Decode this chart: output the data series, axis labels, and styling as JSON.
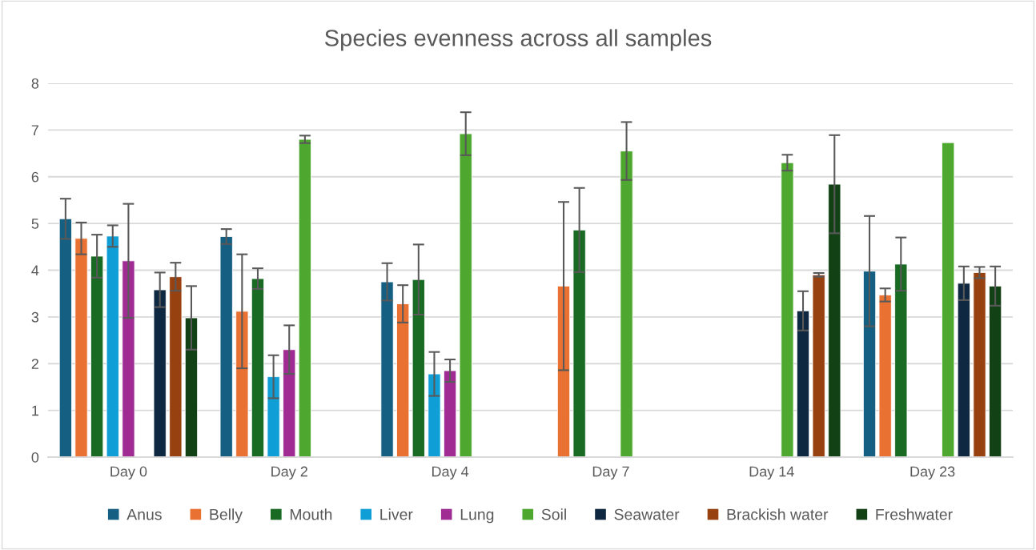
{
  "chart_data": {
    "type": "bar",
    "title": "Species evenness across all samples",
    "categories": [
      "Day 0",
      "Day 2",
      "Day 4",
      "Day 7",
      "Day 14",
      "Day 23"
    ],
    "series": [
      {
        "name": "Anus",
        "color": "#156082",
        "values": [
          5.1,
          4.72,
          3.75,
          null,
          null,
          3.98
        ],
        "errors": [
          0.43,
          0.16,
          0.4,
          null,
          null,
          1.18
        ]
      },
      {
        "name": "Belly",
        "color": "#e97132",
        "values": [
          4.68,
          3.12,
          3.28,
          3.66,
          null,
          3.47
        ],
        "errors": [
          0.34,
          1.22,
          0.4,
          1.8,
          null,
          0.14
        ]
      },
      {
        "name": "Mouth",
        "color": "#196b24",
        "values": [
          4.3,
          3.82,
          3.8,
          4.86,
          null,
          4.13
        ],
        "errors": [
          0.46,
          0.22,
          0.75,
          0.9,
          null,
          0.57
        ]
      },
      {
        "name": "Liver",
        "color": "#0f9ed5",
        "values": [
          4.73,
          1.72,
          1.78,
          null,
          null,
          null
        ],
        "errors": [
          0.23,
          0.46,
          0.47,
          null,
          null,
          null
        ]
      },
      {
        "name": "Lung",
        "color": "#a02b93",
        "values": [
          4.2,
          2.3,
          1.85,
          null,
          null,
          null
        ],
        "errors": [
          1.22,
          0.52,
          0.24,
          null,
          null,
          null
        ]
      },
      {
        "name": "Soil",
        "color": "#4ea72e",
        "values": [
          null,
          6.8,
          6.92,
          6.55,
          6.3,
          6.73
        ],
        "errors": [
          null,
          0.08,
          0.46,
          0.62,
          0.17,
          null
        ]
      },
      {
        "name": "Seawater",
        "color": "#0e2841",
        "values": [
          3.58,
          null,
          null,
          null,
          3.13,
          3.72
        ],
        "errors": [
          0.37,
          null,
          null,
          null,
          0.42,
          0.36
        ]
      },
      {
        "name": "Brackish water",
        "color": "#974010",
        "values": [
          3.86,
          null,
          null,
          null,
          3.9,
          3.95
        ],
        "errors": [
          0.3,
          null,
          null,
          null,
          0.04,
          0.12
        ]
      },
      {
        "name": "Freshwater",
        "color": "#124116",
        "values": [
          2.98,
          null,
          null,
          null,
          5.84,
          3.66
        ],
        "errors": [
          0.68,
          null,
          null,
          null,
          1.05,
          0.42
        ]
      }
    ],
    "ylim": [
      0,
      8
    ],
    "yticks": [
      0,
      1,
      2,
      3,
      4,
      5,
      6,
      7,
      8
    ],
    "grid": "y",
    "legend": "bottom"
  }
}
